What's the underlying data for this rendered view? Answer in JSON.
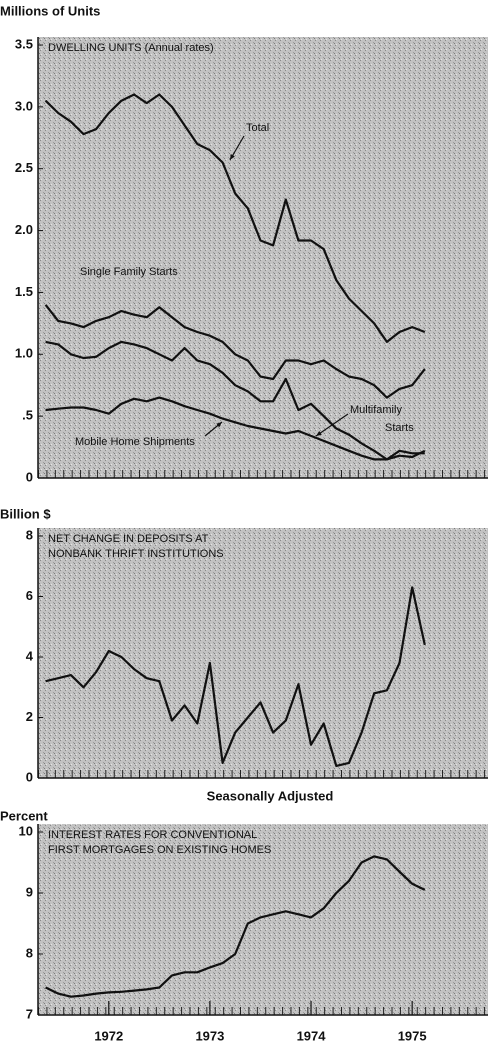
{
  "chart_data": [
    {
      "type": "line",
      "ylabel": "Millions of Units",
      "title": [
        "DWELLING UNITS (Annual rates)"
      ],
      "x": [
        1971.375,
        1971.5,
        1971.625,
        1971.75,
        1971.875,
        1972,
        1972.125,
        1972.25,
        1972.375,
        1972.5,
        1972.625,
        1972.75,
        1972.875,
        1973,
        1973.125,
        1973.25,
        1973.375,
        1973.5,
        1973.625,
        1973.75,
        1973.875,
        1974,
        1974.125,
        1974.25,
        1974.375,
        1974.5,
        1974.625,
        1974.75,
        1974.875,
        1975,
        1975.125
      ],
      "xlim": [
        1971.3,
        1975.75
      ],
      "ylim": [
        0,
        3.5
      ],
      "yticks": [
        0,
        {
          "value": 0.5,
          "label": ".5"
        },
        {
          "value": 1,
          "label": "1.0"
        },
        1.5,
        {
          "value": 2,
          "label": "2.0"
        },
        2.5,
        {
          "value": 3,
          "label": "3.0"
        },
        3.5
      ],
      "series": [
        {
          "name": "Total",
          "color": "#111111",
          "values": [
            3.05,
            2.95,
            2.88,
            2.78,
            2.82,
            2.95,
            3.05,
            3.1,
            3.03,
            3.1,
            3.0,
            2.85,
            2.7,
            2.65,
            2.55,
            2.3,
            2.18,
            1.92,
            1.88,
            2.25,
            1.92,
            1.92,
            1.85,
            1.6,
            1.45,
            1.35,
            1.25,
            1.1,
            1.18,
            1.22,
            1.18
          ]
        },
        {
          "name": "Single Family Starts",
          "color": "#111111",
          "values": [
            1.4,
            1.27,
            1.25,
            1.22,
            1.27,
            1.3,
            1.35,
            1.32,
            1.3,
            1.38,
            1.3,
            1.22,
            1.18,
            1.15,
            1.1,
            1.0,
            0.95,
            0.82,
            0.8,
            0.95,
            0.95,
            0.92,
            0.95,
            0.88,
            0.82,
            0.8,
            0.75,
            0.65,
            0.72,
            0.75,
            0.88
          ]
        },
        {
          "name": "Multifamily Starts",
          "color": "#111111",
          "values": [
            1.1,
            1.08,
            1.0,
            0.97,
            0.98,
            1.05,
            1.1,
            1.08,
            1.05,
            1.0,
            0.95,
            1.05,
            0.95,
            0.92,
            0.85,
            0.75,
            0.7,
            0.62,
            0.62,
            0.8,
            0.55,
            0.6,
            0.5,
            0.4,
            0.35,
            0.28,
            0.22,
            0.15,
            0.22,
            0.2,
            0.2
          ]
        },
        {
          "name": "Mobile Home Shipments",
          "color": "#111111",
          "values": [
            0.55,
            0.56,
            0.57,
            0.57,
            0.55,
            0.52,
            0.6,
            0.64,
            0.62,
            0.65,
            0.62,
            0.58,
            0.55,
            0.52,
            0.48,
            0.45,
            0.42,
            0.4,
            0.38,
            0.36,
            0.38,
            0.34,
            0.3,
            0.26,
            0.22,
            0.18,
            0.15,
            0.15,
            0.18,
            0.17,
            0.22
          ]
        }
      ],
      "annotations": [
        [
          "Total"
        ],
        [
          "Single Family Starts"
        ],
        [
          "Multifamily",
          "Starts"
        ],
        [
          "Mobile Home Shipments"
        ]
      ]
    },
    {
      "type": "line",
      "ylabel": "Billion $",
      "title": [
        "NET CHANGE IN DEPOSITS AT",
        "NONBANK THRIFT INSTITUTIONS"
      ],
      "xlabel": "Seasonally Adjusted",
      "x": [
        1971.375,
        1971.5,
        1971.625,
        1971.75,
        1971.875,
        1972,
        1972.125,
        1972.25,
        1972.375,
        1972.5,
        1972.625,
        1972.75,
        1972.875,
        1973,
        1973.125,
        1973.25,
        1973.375,
        1973.5,
        1973.625,
        1973.75,
        1973.875,
        1974,
        1974.125,
        1974.25,
        1974.375,
        1974.5,
        1974.625,
        1974.75,
        1974.875,
        1975,
        1975.125
      ],
      "xlim": [
        1971.3,
        1975.75
      ],
      "ylim": [
        0,
        8
      ],
      "yticks": [
        0,
        2,
        4,
        6,
        8
      ],
      "series": [
        {
          "name": "Net change in deposits",
          "color": "#111111",
          "values": [
            3.2,
            3.3,
            3.4,
            3.0,
            3.5,
            4.2,
            4.0,
            3.6,
            3.3,
            3.2,
            1.9,
            2.4,
            1.8,
            3.8,
            0.5,
            1.5,
            2.0,
            2.5,
            1.5,
            1.9,
            3.1,
            1.1,
            1.8,
            0.4,
            0.5,
            1.5,
            2.8,
            2.9,
            3.8,
            6.3,
            4.4
          ]
        }
      ]
    },
    {
      "type": "line",
      "ylabel": "Percent",
      "title": [
        "INTEREST RATES FOR CONVENTIONAL",
        "FIRST MORTGAGES ON EXISTING HOMES"
      ],
      "x": [
        1971.375,
        1971.5,
        1971.625,
        1971.75,
        1971.875,
        1972,
        1972.125,
        1972.25,
        1972.375,
        1972.5,
        1972.625,
        1972.75,
        1972.875,
        1973,
        1973.125,
        1973.25,
        1973.375,
        1973.5,
        1973.625,
        1973.75,
        1973.875,
        1974,
        1974.125,
        1974.25,
        1974.375,
        1974.5,
        1974.625,
        1974.75,
        1974.875,
        1975,
        1975.125
      ],
      "xlim": [
        1971.3,
        1975.75
      ],
      "ylim": [
        7,
        10
      ],
      "yticks": [
        7,
        8,
        9,
        10
      ],
      "xticks": [
        1972,
        1973,
        1974,
        1975
      ],
      "series": [
        {
          "name": "Interest rate",
          "color": "#111111",
          "values": [
            7.45,
            7.35,
            7.3,
            7.32,
            7.35,
            7.37,
            7.38,
            7.4,
            7.42,
            7.45,
            7.65,
            7.7,
            7.7,
            7.78,
            7.85,
            8.0,
            8.5,
            8.6,
            8.65,
            8.7,
            8.65,
            8.6,
            8.75,
            9.0,
            9.2,
            9.5,
            9.6,
            9.55,
            9.35,
            9.15,
            9.05
          ]
        }
      ]
    }
  ]
}
